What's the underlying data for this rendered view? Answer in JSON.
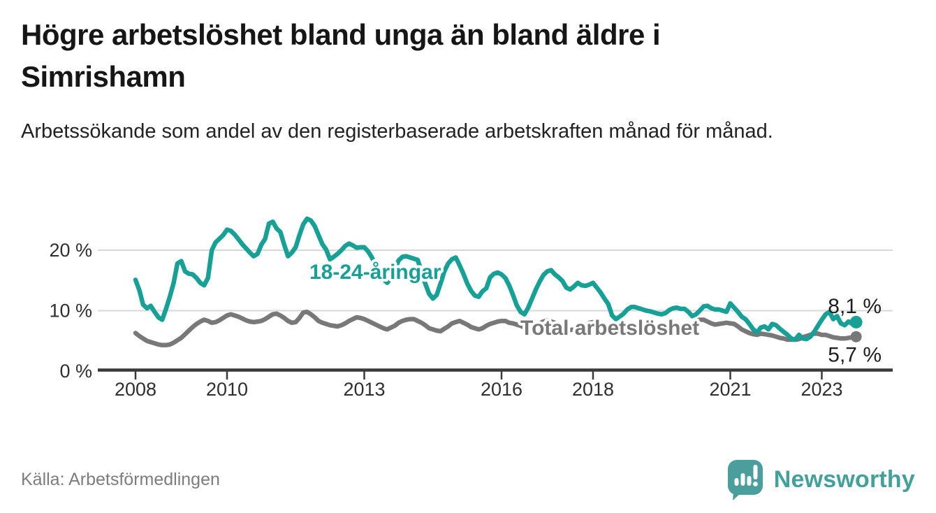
{
  "header": {
    "title": "Högre arbetslöshet bland unga än bland äldre i Simrishamn",
    "subtitle": "Arbetssökande som andel av den registerbaserade arbetskraften månad för månad."
  },
  "footer": {
    "source": "Källa: Arbetsförmedlingen",
    "brand": "Newsworthy",
    "brand_color": "#44a09b",
    "logo_icon": "speech-bubble-bar-chart"
  },
  "chart_data": {
    "type": "line",
    "title": "Högre arbetslöshet bland unga än bland äldre i Simrishamn",
    "subtitle": "Arbetssökande som andel av den registerbaserade arbetskraften månad för månad.",
    "frequency": "monthly",
    "x_start": "2008-01",
    "x_end": "2023-10",
    "xlabel": "",
    "ylabel": "",
    "ylim": [
      0,
      28
    ],
    "grid": "horizontal",
    "y_ticks": [
      {
        "value": 0,
        "label": "0 %"
      },
      {
        "value": 10,
        "label": "10 %"
      },
      {
        "value": 20,
        "label": "20 %"
      }
    ],
    "x_ticks": [
      {
        "year": 2008,
        "label": "2008"
      },
      {
        "year": 2010,
        "label": "2010"
      },
      {
        "year": 2013,
        "label": "2013"
      },
      {
        "year": 2016,
        "label": "2016"
      },
      {
        "year": 2018,
        "label": "2018"
      },
      {
        "year": 2021,
        "label": "2021"
      },
      {
        "year": 2023,
        "label": "2023"
      }
    ],
    "gridline_color": "#d8d8d8",
    "axis_color": "#3a3a3a",
    "tick_label_color": "#2f2f2f",
    "end_label_color": "#1f1f1f",
    "series": [
      {
        "name": "Total arbetslöshet",
        "color": "#787878",
        "end_label": "5,7 %",
        "end_value": 5.7,
        "values": [
          6.3,
          5.8,
          5.4,
          5.0,
          4.8,
          4.6,
          4.4,
          4.3,
          4.3,
          4.4,
          4.7,
          5.1,
          5.5,
          6.1,
          6.7,
          7.3,
          7.8,
          8.2,
          8.5,
          8.3,
          8.0,
          8.1,
          8.4,
          8.8,
          9.2,
          9.4,
          9.2,
          9.0,
          8.7,
          8.4,
          8.2,
          8.1,
          8.2,
          8.3,
          8.6,
          9.0,
          9.4,
          9.5,
          9.2,
          8.8,
          8.3,
          8.0,
          8.1,
          8.8,
          9.7,
          9.8,
          9.4,
          8.9,
          8.3,
          8.0,
          7.8,
          7.6,
          7.5,
          7.4,
          7.6,
          7.9,
          8.3,
          8.6,
          8.9,
          8.8,
          8.6,
          8.3,
          8.0,
          7.7,
          7.4,
          7.1,
          6.9,
          7.2,
          7.5,
          8.0,
          8.3,
          8.5,
          8.6,
          8.6,
          8.3,
          8.0,
          7.6,
          7.1,
          6.9,
          6.7,
          6.6,
          7.0,
          7.4,
          7.9,
          8.1,
          8.3,
          8.0,
          7.7,
          7.3,
          7.1,
          6.9,
          7.1,
          7.5,
          7.8,
          8.0,
          8.2,
          8.3,
          8.3,
          8.0,
          7.9,
          7.7,
          7.5,
          7.2,
          7.0,
          7.3,
          7.6,
          7.9,
          8.2,
          8.4,
          8.2,
          8.0,
          7.6,
          7.2,
          7.0,
          6.8,
          6.9,
          7.2,
          7.4,
          7.7,
          8.0,
          8.1,
          7.9,
          7.6,
          7.2,
          6.8,
          6.5,
          6.4,
          6.5,
          6.7,
          6.9,
          7.1,
          7.3,
          7.5,
          7.4,
          7.2,
          7.0,
          6.8,
          6.7,
          6.6,
          6.7,
          6.9,
          7.0,
          7.2,
          7.4,
          7.6,
          7.5,
          7.8,
          8.3,
          8.5,
          8.5,
          8.2,
          7.9,
          7.7,
          7.8,
          7.9,
          8.0,
          7.9,
          7.8,
          7.4,
          6.9,
          6.6,
          6.3,
          6.1,
          6.0,
          6.2,
          6.1,
          6.0,
          5.9,
          5.7,
          5.5,
          5.4,
          5.2,
          5.2,
          5.2,
          5.3,
          5.6,
          5.8,
          6.0,
          6.2,
          6.2,
          6.0,
          6.0,
          5.8,
          5.6,
          5.5,
          5.4,
          5.4,
          5.5,
          5.6,
          5.7
        ]
      },
      {
        "name": "18-24-åringar",
        "color": "#17a095",
        "end_label": "8,1 %",
        "end_value": 8.1,
        "values": [
          15.1,
          13.4,
          11.0,
          10.4,
          10.8,
          9.8,
          8.9,
          8.5,
          10.3,
          12.3,
          14.6,
          17.8,
          18.2,
          16.5,
          16.1,
          16.0,
          15.4,
          14.6,
          14.2,
          15.4,
          20.0,
          21.3,
          21.9,
          22.5,
          23.4,
          23.2,
          22.6,
          21.8,
          21.0,
          20.3,
          19.6,
          19.0,
          19.4,
          20.9,
          21.9,
          24.4,
          24.7,
          23.6,
          23.0,
          20.9,
          19.0,
          19.6,
          20.5,
          22.5,
          24.3,
          25.2,
          24.9,
          24.0,
          22.5,
          21.0,
          20.1,
          18.5,
          18.9,
          19.4,
          20.0,
          20.7,
          21.1,
          20.8,
          20.4,
          20.5,
          20.5,
          19.8,
          18.8,
          17.5,
          16.2,
          15.2,
          14.6,
          15.4,
          16.8,
          18.3,
          18.9,
          19.0,
          18.8,
          18.6,
          18.4,
          16.5,
          14.5,
          12.8,
          12.0,
          12.6,
          14.5,
          16.5,
          17.8,
          18.5,
          18.8,
          17.5,
          16.1,
          14.5,
          13.3,
          12.5,
          12.3,
          13.2,
          13.7,
          15.5,
          16.1,
          16.3,
          16.0,
          15.4,
          14.2,
          12.6,
          10.9,
          9.8,
          9.4,
          10.5,
          12.0,
          13.5,
          14.8,
          15.9,
          16.5,
          16.7,
          16.0,
          15.5,
          14.9,
          13.8,
          13.5,
          14.0,
          14.6,
          14.2,
          14.1,
          14.3,
          14.6,
          13.8,
          13.0,
          12.0,
          11.1,
          9.2,
          8.6,
          9.0,
          9.5,
          10.2,
          10.6,
          10.6,
          10.4,
          10.2,
          10.0,
          9.9,
          9.7,
          9.5,
          9.4,
          9.6,
          10.1,
          10.4,
          10.5,
          10.3,
          10.3,
          9.8,
          9.1,
          9.4,
          10.0,
          10.7,
          10.8,
          10.4,
          10.2,
          10.2,
          10.0,
          9.8,
          11.2,
          10.5,
          9.8,
          9.0,
          8.6,
          7.8,
          6.9,
          6.4,
          7.2,
          7.4,
          6.9,
          7.8,
          7.6,
          7.0,
          6.5,
          6.0,
          5.4,
          5.2,
          6.0,
          5.4,
          5.3,
          5.7,
          6.5,
          7.5,
          8.5,
          9.4,
          9.8,
          8.6,
          9.1,
          7.9,
          7.6,
          8.2,
          7.8,
          8.1
        ]
      }
    ],
    "legend_position": "inline-labels"
  }
}
